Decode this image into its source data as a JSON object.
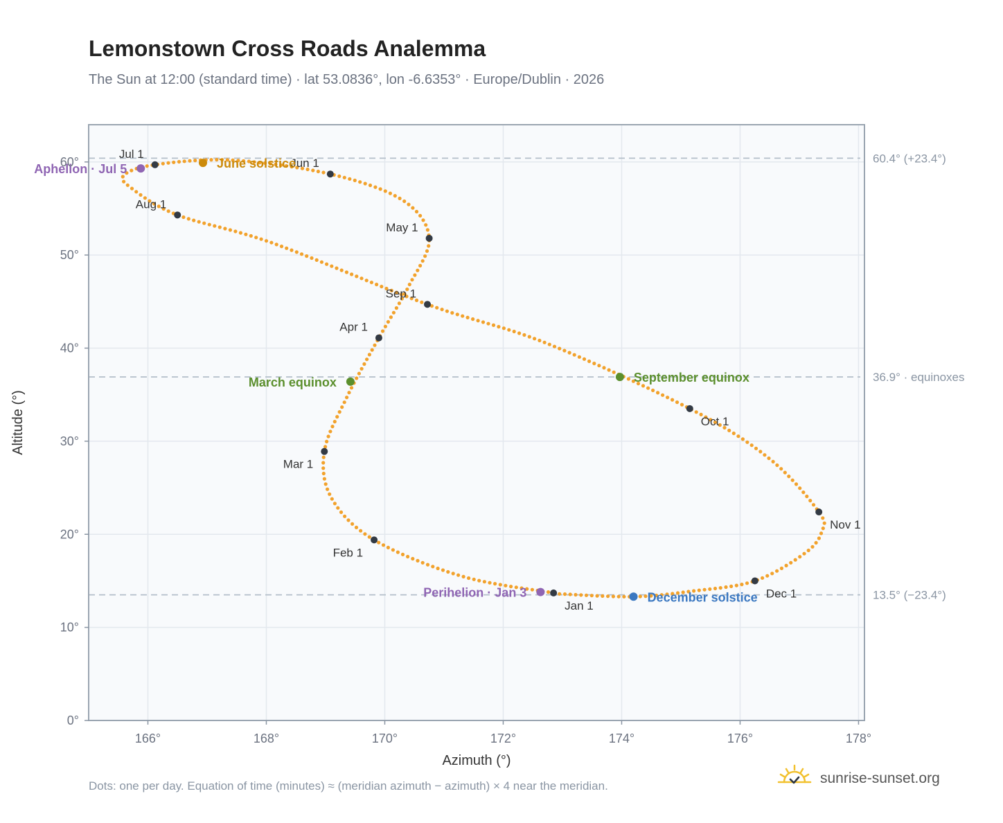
{
  "header": {
    "title": "Lemonstown Cross Roads Analemma",
    "subtitle": "The Sun at 12:00 (standard time) · lat 53.0836°, lon -6.6353° · Europe/Dublin · 2026"
  },
  "footer": {
    "note": "Dots: one per day. Equation of time (minutes) ≈ (meridian azimuth − azimuth) × 4 near the meridian.",
    "brand": "sunrise-sunset.org",
    "brand_icon": "sun-logo-icon"
  },
  "colors": {
    "path": "#f2a22c",
    "month_marker": "#333a44",
    "solstice_june": "#cc8a0a",
    "solstice_december": "#3b78c1",
    "equinox": "#5b8f2d",
    "apsis": "#8f65b3",
    "reference_line": "#b3bec9",
    "plot_background": "#f8fafc"
  },
  "chart_data": {
    "type": "scatter",
    "xlabel": "Azimuth (°)",
    "ylabel": "Altitude (°)",
    "xlim": [
      165,
      178.1
    ],
    "ylim": [
      0,
      64
    ],
    "x_ticks": [
      "166°",
      "168°",
      "170°",
      "172°",
      "174°",
      "176°",
      "178°"
    ],
    "y_ticks": [
      "0°",
      "10°",
      "20°",
      "30°",
      "40°",
      "50°",
      "60°"
    ],
    "grid": true,
    "daily_path_anchors": [
      {
        "date": "Jan 1",
        "az": 172.85,
        "alt": 13.7
      },
      {
        "date": "Jan 15",
        "az": 171.3,
        "alt": 15.5
      },
      {
        "date": "Feb 1",
        "az": 169.82,
        "alt": 19.4
      },
      {
        "date": "Feb 15",
        "az": 169.1,
        "alt": 23.9
      },
      {
        "date": "Mar 1",
        "az": 168.98,
        "alt": 28.9
      },
      {
        "date": "Mar 15",
        "az": 169.35,
        "alt": 34.6
      },
      {
        "date": "Apr 1",
        "az": 169.9,
        "alt": 41.1
      },
      {
        "date": "Apr 15",
        "az": 170.4,
        "alt": 46.6
      },
      {
        "date": "May 1",
        "az": 170.75,
        "alt": 51.8
      },
      {
        "date": "May 15",
        "az": 170.3,
        "alt": 55.9
      },
      {
        "date": "Jun 1",
        "az": 169.08,
        "alt": 58.7
      },
      {
        "date": "Jun 15",
        "az": 167.4,
        "alt": 60.2
      },
      {
        "date": "Jul 1",
        "az": 166.12,
        "alt": 59.7
      },
      {
        "date": "Jul 10",
        "az": 165.6,
        "alt": 58.6
      },
      {
        "date": "Jul 18",
        "az": 165.72,
        "alt": 57.2
      },
      {
        "date": "Aug 1",
        "az": 166.5,
        "alt": 54.3
      },
      {
        "date": "Aug 15",
        "az": 168.1,
        "alt": 51.3
      },
      {
        "date": "Sep 1",
        "az": 170.72,
        "alt": 44.7
      },
      {
        "date": "Sep 15",
        "az": 172.7,
        "alt": 40.6
      },
      {
        "date": "Oct 1",
        "az": 175.15,
        "alt": 33.5
      },
      {
        "date": "Oct 15",
        "az": 176.5,
        "alt": 28.1
      },
      {
        "date": "Nov 1",
        "az": 177.33,
        "alt": 22.4
      },
      {
        "date": "Nov 8",
        "az": 177.38,
        "alt": 20.3
      },
      {
        "date": "Nov 15",
        "az": 177.1,
        "alt": 18.0
      },
      {
        "date": "Dec 1",
        "az": 176.25,
        "alt": 15.0
      },
      {
        "date": "Dec 10",
        "az": 175.2,
        "alt": 13.9
      },
      {
        "date": "Dec 21",
        "az": 174.2,
        "alt": 13.3
      },
      {
        "date": "Dec 31",
        "az": 172.95,
        "alt": 13.6
      }
    ],
    "month_markers": [
      {
        "label": "Jan 1",
        "az": 172.85,
        "alt": 13.7,
        "label_pos": "below-right"
      },
      {
        "label": "Feb 1",
        "az": 169.82,
        "alt": 19.4,
        "label_pos": "below-left"
      },
      {
        "label": "Mar 1",
        "az": 168.98,
        "alt": 28.9,
        "label_pos": "below-left"
      },
      {
        "label": "Apr 1",
        "az": 169.9,
        "alt": 41.1,
        "label_pos": "above-left"
      },
      {
        "label": "May 1",
        "az": 170.75,
        "alt": 51.8,
        "label_pos": "above-left"
      },
      {
        "label": "Jun 1",
        "az": 169.08,
        "alt": 58.7,
        "label_pos": "above-left"
      },
      {
        "label": "Jul 1",
        "az": 166.12,
        "alt": 59.7,
        "label_pos": "above-left"
      },
      {
        "label": "Aug 1",
        "az": 166.5,
        "alt": 54.3,
        "label_pos": "above-left"
      },
      {
        "label": "Sep 1",
        "az": 170.72,
        "alt": 44.7,
        "label_pos": "above-left"
      },
      {
        "label": "Oct 1",
        "az": 175.15,
        "alt": 33.5,
        "label_pos": "below-right"
      },
      {
        "label": "Nov 1",
        "az": 177.33,
        "alt": 22.4,
        "label_pos": "below-right"
      },
      {
        "label": "Dec 1",
        "az": 176.25,
        "alt": 15.0,
        "label_pos": "below-right"
      }
    ],
    "annotations": [
      {
        "label": "June solstice",
        "az": 166.93,
        "alt": 59.9,
        "color": "#cc8a0a",
        "side": "right"
      },
      {
        "label": "December solstice",
        "az": 174.2,
        "alt": 13.3,
        "color": "#3b78c1",
        "side": "right"
      },
      {
        "label": "March equinox",
        "az": 169.42,
        "alt": 36.4,
        "color": "#5b8f2d",
        "side": "left"
      },
      {
        "label": "September equinox",
        "az": 173.97,
        "alt": 36.9,
        "color": "#5b8f2d",
        "side": "right"
      },
      {
        "label": "Aphelion · Jul 5",
        "az": 165.88,
        "alt": 59.3,
        "color": "#8f65b3",
        "side": "left"
      },
      {
        "label": "Perihelion · Jan 3",
        "az": 172.63,
        "alt": 13.8,
        "color": "#8f65b3",
        "side": "left"
      }
    ],
    "reference_lines": [
      {
        "alt": 60.4,
        "label": "60.4° (+23.4°)"
      },
      {
        "alt": 36.9,
        "label": "36.9° · equinoxes"
      },
      {
        "alt": 13.5,
        "label": "13.5° (−23.4°)"
      }
    ]
  }
}
